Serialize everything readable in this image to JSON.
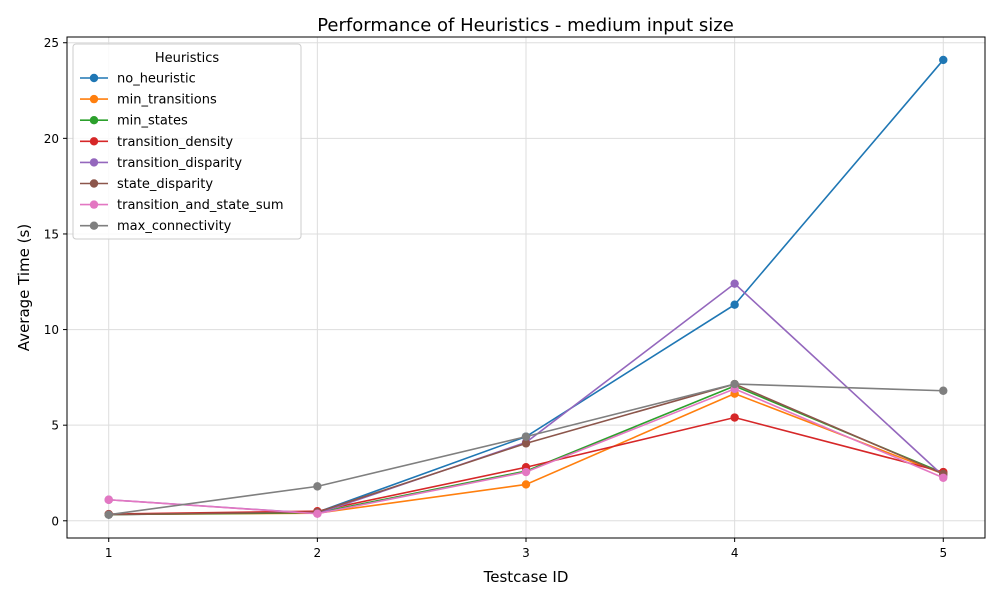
{
  "chart_data": {
    "type": "line",
    "title": "Performance of Heuristics - medium input size",
    "xlabel": "Testcase ID",
    "ylabel": "Average Time (s)",
    "x": [
      1,
      2,
      3,
      4,
      5
    ],
    "x_ticks": [
      "1",
      "2",
      "3",
      "4",
      "5"
    ],
    "xlim": [
      0.8,
      5.2
    ],
    "ylim": [
      -0.9,
      25.3
    ],
    "y_ticks": [
      0,
      5,
      10,
      15,
      20,
      25
    ],
    "y_tick_labels": [
      "0",
      "5",
      "10",
      "15",
      "20",
      "25"
    ],
    "grid": true,
    "legend": {
      "title": "Heuristics",
      "placement": "top-left"
    },
    "series": [
      {
        "name": "no_heuristic",
        "color": "#1f77b4",
        "values": [
          0.32,
          0.45,
          4.4,
          11.3,
          24.1
        ]
      },
      {
        "name": "min_transitions",
        "color": "#ff7f0e",
        "values": [
          0.33,
          0.4,
          1.9,
          6.65,
          2.45
        ]
      },
      {
        "name": "min_states",
        "color": "#2ca02c",
        "values": [
          0.33,
          0.42,
          2.6,
          7.05,
          2.5
        ]
      },
      {
        "name": "transition_density",
        "color": "#d62728",
        "values": [
          0.35,
          0.5,
          2.8,
          5.4,
          2.55
        ]
      },
      {
        "name": "transition_disparity",
        "color": "#9467bd",
        "values": [
          1.1,
          0.38,
          4.1,
          12.4,
          2.35
        ]
      },
      {
        "name": "state_disparity",
        "color": "#8c564b",
        "values": [
          0.33,
          0.45,
          4.05,
          7.15,
          2.45
        ]
      },
      {
        "name": "transition_and_state_sum",
        "color": "#e377c2",
        "values": [
          1.1,
          0.37,
          2.55,
          6.9,
          2.25
        ]
      },
      {
        "name": "max_connectivity",
        "color": "#7f7f7f",
        "values": [
          0.32,
          1.8,
          4.4,
          7.15,
          6.8
        ]
      }
    ]
  }
}
